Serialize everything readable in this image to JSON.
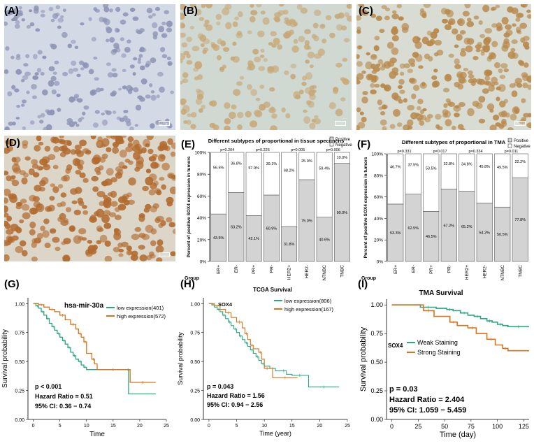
{
  "panels": {
    "a": "(A)",
    "b": "(B)",
    "c": "(C)",
    "d": "(D)",
    "e": "(E)",
    "f": "(F)",
    "g": "(G)",
    "h": "(H)",
    "i": "(I)"
  },
  "colors": {
    "negative_bar": "#ffffff",
    "positive_bar": "#d3d3d3",
    "low_expression": "#2aa682",
    "high_expression": "#d9731c",
    "weak_staining": "#2aa682",
    "strong_staining": "#d9731c",
    "ihc_a": "#c9cfe0",
    "ihc_b": "#c8a878",
    "ihc_c": "#b8884a",
    "ihc_d": "#b26a2e"
  },
  "chart_data": [
    {
      "id": "E",
      "type": "bar",
      "stacked": true,
      "title": "Different subtypes of proportional in tissue specimens",
      "ylabel": "Percent of positive SOX4 expression in tumors",
      "xlabel": "Group",
      "ylim": [
        0,
        100
      ],
      "yticks": [
        "0%",
        "20%",
        "40%",
        "60%",
        "80%",
        "100%"
      ],
      "categories": [
        "ER+",
        "ER-",
        "PR+",
        "PR-",
        "HER2+",
        "HER2-",
        "NTNBC",
        "TNBC"
      ],
      "pvalues": [
        "p=0.204",
        "p=0.226",
        "p=0.005",
        "p=0.006"
      ],
      "legend": [
        "Positive",
        "Negative"
      ],
      "legend_position": "top-right",
      "series": [
        {
          "name": "Positive",
          "values": [
            43.5,
            63.2,
            42.1,
            60.9,
            31.8,
            75.0,
            40.6,
            90.0
          ],
          "labels": [
            "43.5%",
            "63.2%",
            "42.1%",
            "60.9%",
            "31.8%",
            "75.0%",
            "40.6%",
            "90.0%"
          ]
        },
        {
          "name": "Negative",
          "values": [
            56.5,
            36.8,
            57.9,
            39.1,
            68.2,
            25.0,
            59.4,
            10.0
          ],
          "labels": [
            "56.5%",
            "36.8%",
            "57.9%",
            "39.1%",
            "68.2%",
            "25.0%",
            "59.4%",
            "10.0%"
          ]
        }
      ]
    },
    {
      "id": "F",
      "type": "bar",
      "stacked": true,
      "title": "Different subtypes of proportional in TMA",
      "ylabel": "Percent of positive SOX4 expression in tumors",
      "xlabel": "Group",
      "ylim": [
        0,
        100
      ],
      "yticks": [
        "0%",
        "20%",
        "40%",
        "60%",
        "80%",
        "100%"
      ],
      "categories": [
        "ER+",
        "ER-",
        "PR+",
        "PR-",
        "HER2+",
        "HER2-",
        "NTNBC",
        "TNBC"
      ],
      "pvalues": [
        "p=0.331",
        "p=0.017",
        "p=0.334",
        "p=0.011"
      ],
      "legend": [
        "Positive",
        "Negative"
      ],
      "legend_position": "top-right",
      "series": [
        {
          "name": "Positive",
          "values": [
            53.3,
            62.5,
            46.5,
            67.2,
            65.2,
            54.2,
            50.5,
            77.8
          ],
          "labels": [
            "53.3%",
            "62.5%",
            "46.5%",
            "67.2%",
            "65.2%",
            "54.2%",
            "50.5%",
            "77.8%"
          ]
        },
        {
          "name": "Negative",
          "values": [
            46.7,
            37.5,
            53.5,
            32.8,
            34.8,
            45.8,
            49.5,
            22.2
          ],
          "labels": [
            "46.7%",
            "37.5%",
            "53.5%",
            "32.8%",
            "34.8%",
            "45.8%",
            "49.5%",
            "22.2%"
          ]
        }
      ]
    },
    {
      "id": "G",
      "type": "line",
      "step": true,
      "title": "hsa-mir-30a",
      "xlabel": "Time",
      "ylabel": "Survival probability",
      "xlim": [
        -1,
        25
      ],
      "ylim": [
        0,
        1.05
      ],
      "xticks": [
        "0",
        "5",
        "10",
        "15",
        "20",
        "25"
      ],
      "yticks": [
        "0.00",
        "0.25",
        "0.50",
        "0.75",
        "1.00"
      ],
      "stats": [
        "p < 0.001",
        "Hazard Ratio = 0.51",
        "95% CI: 0.36 − 0.74"
      ],
      "legend_position": "top-right",
      "series": [
        {
          "name": "low expression(401)",
          "color": "low_expression",
          "x": [
            0,
            0.5,
            1,
            1.5,
            2,
            2.5,
            3,
            3.5,
            4,
            4.5,
            5,
            5.5,
            6,
            6.5,
            7,
            7.5,
            8,
            8.5,
            9,
            9.5,
            10,
            17.7,
            17.9,
            23
          ],
          "y": [
            1.0,
            0.98,
            0.96,
            0.93,
            0.9,
            0.87,
            0.83,
            0.8,
            0.77,
            0.74,
            0.71,
            0.68,
            0.65,
            0.62,
            0.58,
            0.55,
            0.52,
            0.5,
            0.47,
            0.45,
            0.43,
            0.43,
            0.22,
            0.22
          ]
        },
        {
          "name": "high expression(572)",
          "color": "high_expression",
          "x": [
            0,
            1,
            2,
            3,
            4,
            5,
            6,
            7,
            8,
            8.5,
            9,
            9.5,
            10,
            11,
            11.5,
            12,
            18,
            18.2,
            23
          ],
          "y": [
            1.0,
            0.99,
            0.97,
            0.95,
            0.93,
            0.9,
            0.86,
            0.82,
            0.78,
            0.74,
            0.71,
            0.67,
            0.57,
            0.52,
            0.48,
            0.43,
            0.43,
            0.32,
            0.32
          ]
        }
      ]
    },
    {
      "id": "H",
      "type": "line",
      "step": true,
      "title": "TCGA Survival",
      "subtitle": "SOX4",
      "xlabel": "Time (year)",
      "ylabel": "Survival probability",
      "xlim": [
        -1,
        25
      ],
      "ylim": [
        0,
        1.05
      ],
      "xticks": [
        "0",
        "5",
        "10",
        "15",
        "20",
        "25"
      ],
      "yticks": [
        "0.00",
        "0.25",
        "0.50",
        "0.75",
        "1.00"
      ],
      "stats": [
        "p = 0.043",
        "Hazard Ratio = 1.56",
        "95% CI: 0.94 − 2.56"
      ],
      "legend_position": "top-right",
      "series": [
        {
          "name": "low expression(806)",
          "color": "low_expression",
          "x": [
            0,
            0.5,
            1,
            1.5,
            2,
            2.5,
            3,
            3.5,
            4,
            4.5,
            5,
            5.5,
            6,
            6.5,
            7,
            7.5,
            8,
            8.5,
            9,
            9.5,
            10,
            11,
            12,
            13,
            14,
            15,
            17.8,
            18,
            23.5
          ],
          "y": [
            1.0,
            0.99,
            0.97,
            0.95,
            0.93,
            0.9,
            0.87,
            0.84,
            0.81,
            0.78,
            0.75,
            0.72,
            0.69,
            0.66,
            0.63,
            0.6,
            0.57,
            0.54,
            0.51,
            0.48,
            0.46,
            0.44,
            0.42,
            0.42,
            0.39,
            0.38,
            0.38,
            0.28,
            0.28
          ]
        },
        {
          "name": "high expression(167)",
          "color": "high_expression",
          "x": [
            0,
            1,
            2,
            3,
            4,
            5,
            6,
            6.5,
            7,
            7.5,
            8,
            9,
            9.5,
            10,
            11,
            11.5,
            16
          ],
          "y": [
            1.0,
            0.98,
            0.95,
            0.92,
            0.88,
            0.84,
            0.79,
            0.74,
            0.69,
            0.64,
            0.61,
            0.58,
            0.52,
            0.44,
            0.44,
            0.36,
            0.36
          ]
        }
      ]
    },
    {
      "id": "I",
      "type": "line",
      "step": true,
      "title": "TMA Survival",
      "subtitle": "SOX4",
      "xlabel": "Time (day)",
      "ylabel": "Survival probability",
      "xlim": [
        -5,
        130
      ],
      "ylim": [
        0,
        1.05
      ],
      "xticks": [
        "0",
        "25",
        "50",
        "75",
        "100",
        "125"
      ],
      "yticks": [
        "0.00",
        "0.25",
        "0.50",
        "0.75",
        "1.00"
      ],
      "stats": [
        "p = 0.03",
        "Hazard Ratio = 2.404",
        "95% CI: 1.059 − 5.459"
      ],
      "legend_position": "center",
      "series": [
        {
          "name": "Weak Staining",
          "color": "weak_staining",
          "x": [
            0,
            27,
            42,
            52,
            58,
            65,
            72,
            78,
            84,
            90,
            95,
            100,
            105,
            110,
            130
          ],
          "y": [
            1.0,
            0.98,
            0.97,
            0.96,
            0.95,
            0.93,
            0.91,
            0.9,
            0.88,
            0.86,
            0.85,
            0.83,
            0.82,
            0.81,
            0.81
          ]
        },
        {
          "name": "Strong Staining",
          "color": "strong_staining",
          "x": [
            0,
            30,
            40,
            55,
            62,
            72,
            80,
            90,
            98,
            105,
            110,
            130
          ],
          "y": [
            1.0,
            0.95,
            0.9,
            0.85,
            0.82,
            0.8,
            0.75,
            0.7,
            0.65,
            0.62,
            0.6,
            0.6
          ]
        }
      ]
    }
  ]
}
